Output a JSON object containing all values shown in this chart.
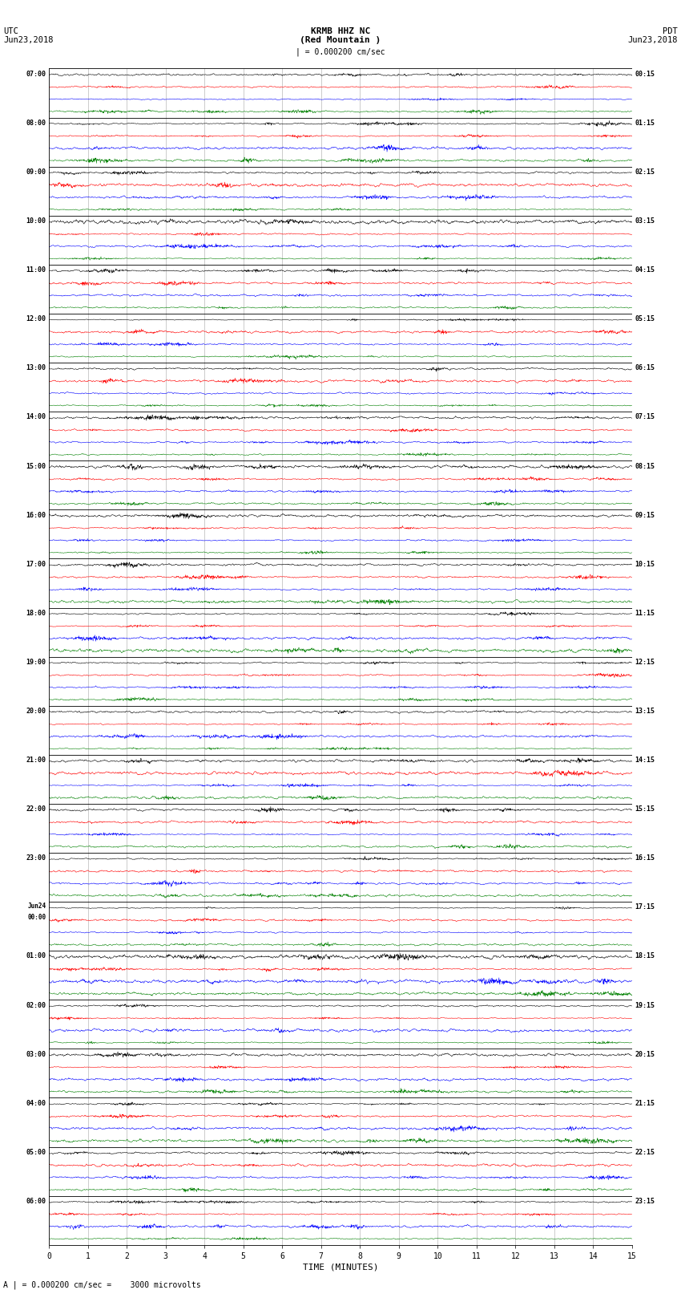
{
  "title_line1": "KRMB HHZ NC",
  "title_line2": "(Red Mountain )",
  "scale_text": "| = 0.000200 cm/sec",
  "left_label_top": "UTC",
  "left_label_date": "Jun23,2018",
  "right_label_top": "PDT",
  "right_label_date": "Jun23,2018",
  "bottom_label": "TIME (MINUTES)",
  "bottom_note": "A | = 0.000200 cm/sec =    3000 microvolts",
  "utc_times": [
    "07:00",
    "08:00",
    "09:00",
    "10:00",
    "11:00",
    "12:00",
    "13:00",
    "14:00",
    "15:00",
    "16:00",
    "17:00",
    "18:00",
    "19:00",
    "20:00",
    "21:00",
    "22:00",
    "23:00",
    "Jun24\n00:00",
    "01:00",
    "02:00",
    "03:00",
    "04:00",
    "05:00",
    "06:00"
  ],
  "pdt_times": [
    "00:15",
    "01:15",
    "02:15",
    "03:15",
    "04:15",
    "05:15",
    "06:15",
    "07:15",
    "08:15",
    "09:15",
    "10:15",
    "11:15",
    "12:15",
    "13:15",
    "14:15",
    "15:15",
    "16:15",
    "17:15",
    "18:15",
    "19:15",
    "20:15",
    "21:15",
    "22:15",
    "23:15"
  ],
  "n_rows": 24,
  "traces_per_row": 4,
  "trace_colors": [
    "black",
    "red",
    "blue",
    "green"
  ],
  "x_ticks": [
    0,
    1,
    2,
    3,
    4,
    5,
    6,
    7,
    8,
    9,
    10,
    11,
    12,
    13,
    14,
    15
  ],
  "x_min": 0,
  "x_max": 15,
  "bg_color": "white",
  "grid_color": "#999999",
  "samples_per_row": 2000,
  "amplitude_scale": 0.3,
  "seed": 12345,
  "font_family": "monospace"
}
